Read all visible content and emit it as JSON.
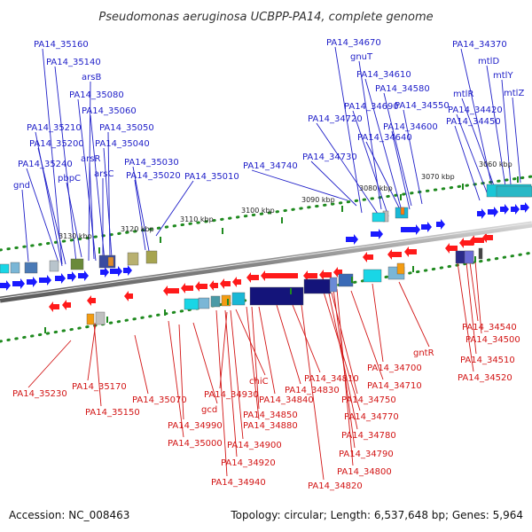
{
  "title": "Pseudomonas aeruginosa UCBPP-PA14, complete genome",
  "footer": {
    "accession": "Accession: NC_008463",
    "topology": "Topology: circular; Length: 6,537,648 bp; Genes: 5,964"
  },
  "ruler": [
    "3060 kbp",
    "3070 kbp",
    "3080 kbp",
    "3090 kbp",
    "3100 kbp",
    "3110 kbp",
    "3120 kbp",
    "3130 kbp"
  ],
  "labels_top": [
    "gnd",
    "PA14_35240",
    "pbpC",
    "PA14_35200",
    "PA14_35210",
    "arsR",
    "arsC",
    "PA14_35030",
    "PA14_35020",
    "PA14_35040",
    "PA14_35050",
    "PA14_35060",
    "PA14_35080",
    "arsB",
    "PA14_35140",
    "PA14_35160",
    "PA14_35010",
    "PA14_34740",
    "PA14_34730",
    "PA14_34720",
    "PA14_34690",
    "PA14_34640",
    "PA14_34600",
    "PA14_34550",
    "PA14_34580",
    "PA14_34610",
    "gnuT",
    "PA14_34670",
    "PA14_34450",
    "PA14_34420",
    "mtlR",
    "mtlY",
    "mtlZ",
    "mtlD",
    "PA14_34370"
  ],
  "labels_bottom": [
    "PA14_35230",
    "PA14_35170",
    "PA14_35150",
    "PA14_35070",
    "gcd",
    "PA14_34990",
    "PA14_35000",
    "PA14_34930",
    "PA14_34900",
    "PA14_34920",
    "PA14_34940",
    "chiC",
    "PA14_34880",
    "PA14_34850",
    "PA14_34840",
    "PA14_34830",
    "PA14_34810",
    "PA14_34820",
    "PA14_34800",
    "PA14_34790",
    "PA14_34780",
    "PA14_34770",
    "PA14_34750",
    "PA14_34710",
    "PA14_34700",
    "gntR",
    "PA14_34520",
    "PA14_34510",
    "PA14_34500",
    "PA14_34540"
  ],
  "colors": {
    "top_strand": "#1a1aff",
    "bottom_strand": "#ff1a1a",
    "backbone": "#9a9a9a",
    "top_label": "#1e1ec8",
    "bottom_label": "#d21414",
    "ruler_tick": "#1f8a1f"
  }
}
